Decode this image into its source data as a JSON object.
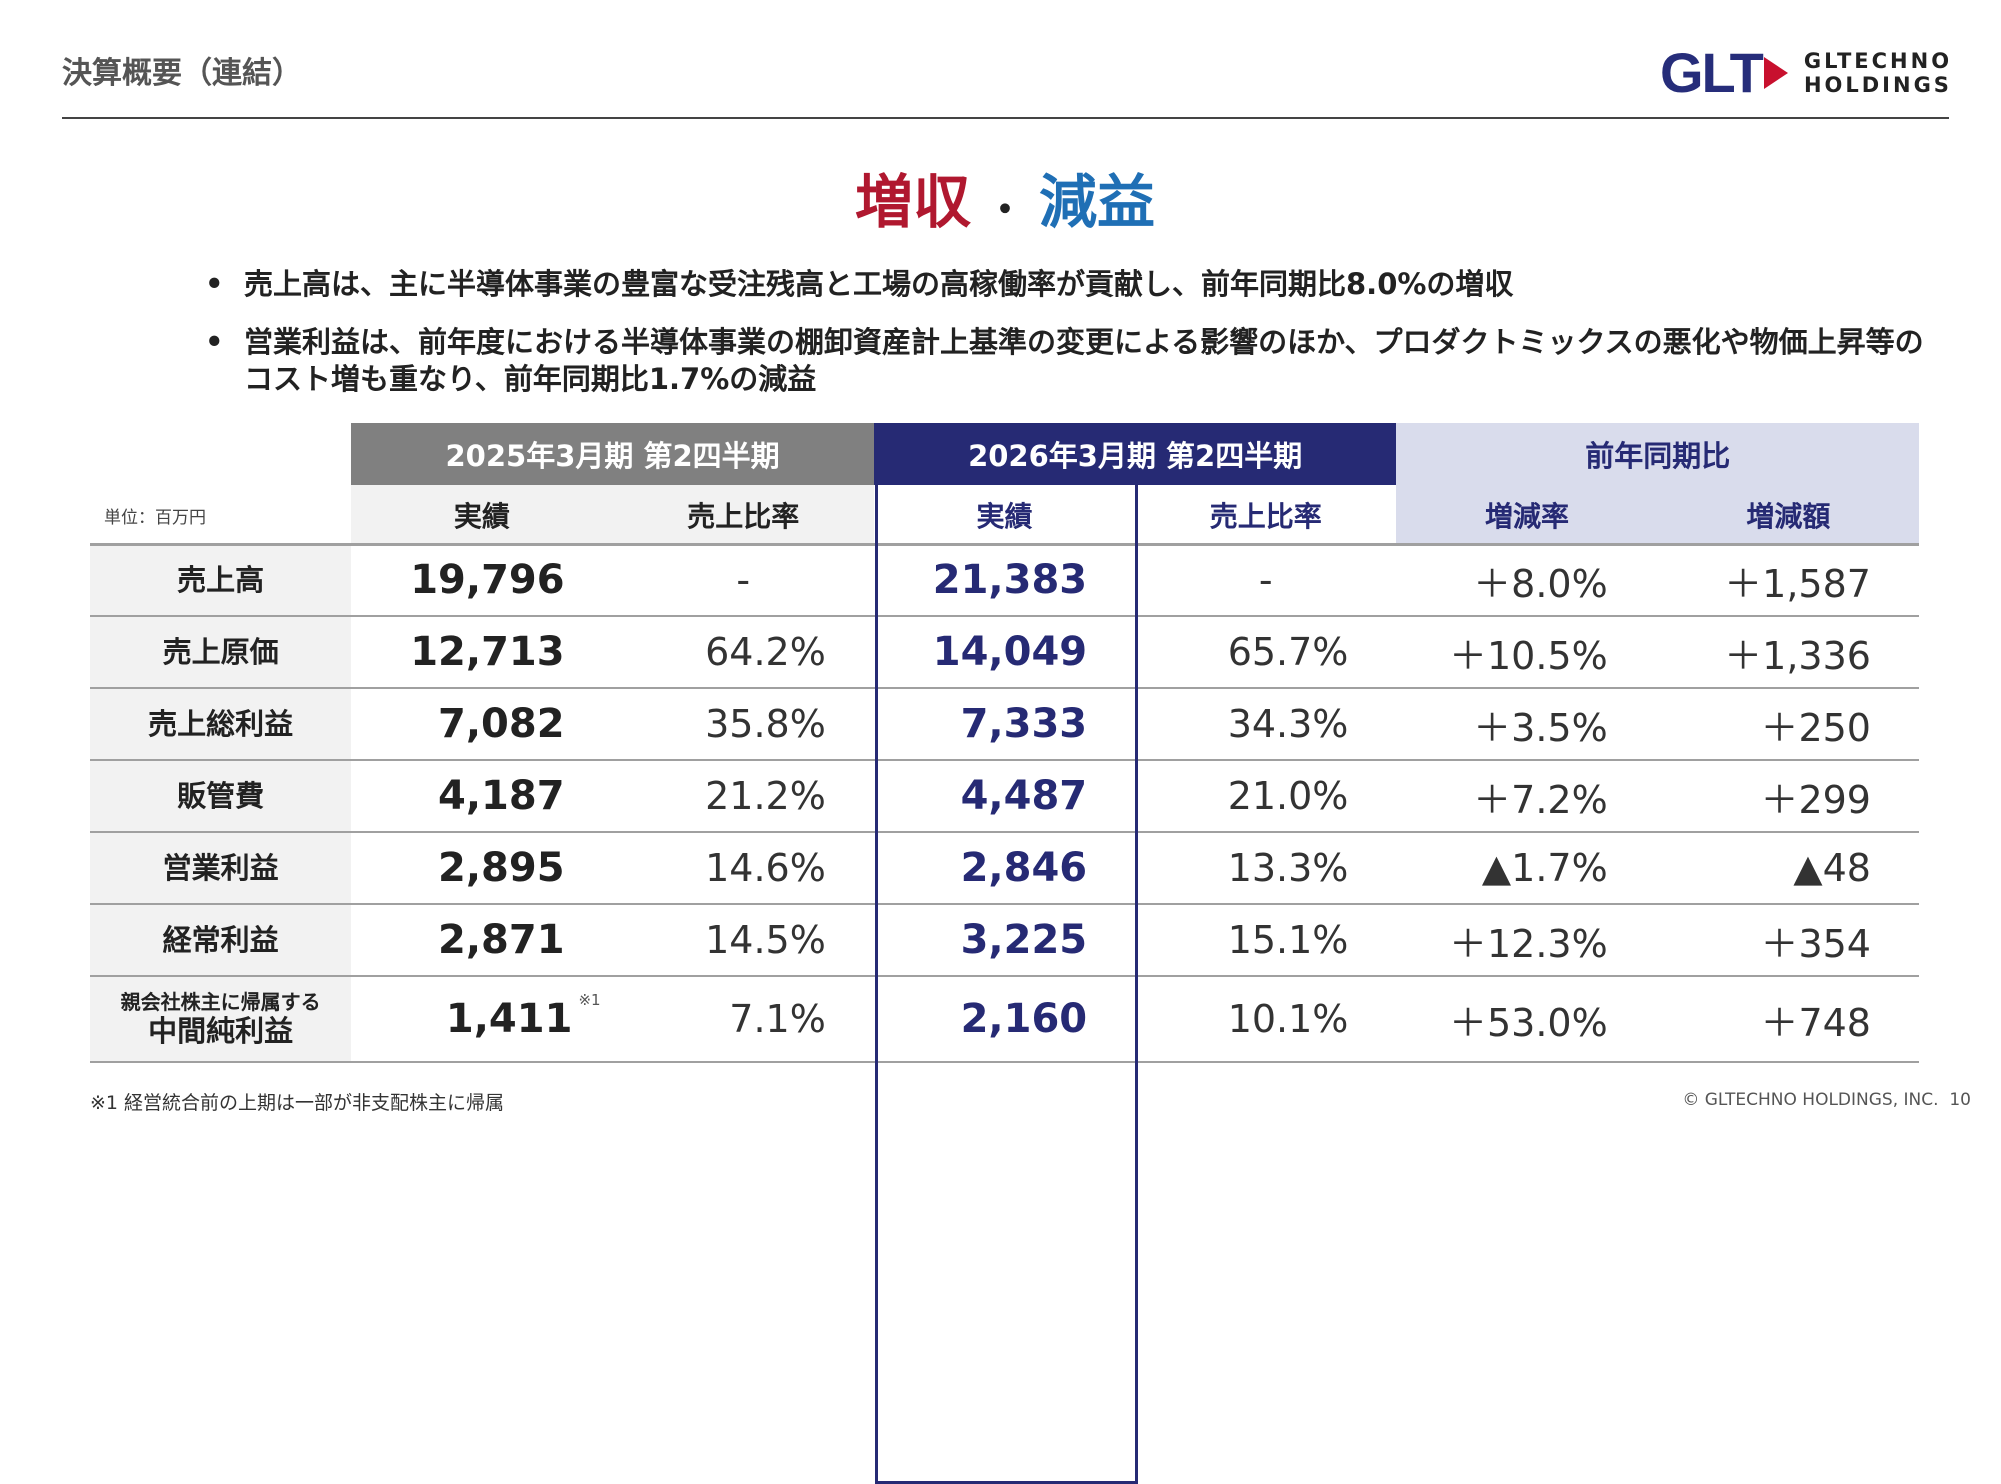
{
  "header": {
    "title": "決算概要（連結）",
    "logo_mark": "GLT",
    "logo_name_line1": "GLTECHNO",
    "logo_name_line2": "HOLDINGS"
  },
  "headline": {
    "up": "増収",
    "dot": "・",
    "down": "減益"
  },
  "bullets": [
    {
      "marker": "•",
      "text": "売上高は、主に半導体事業の豊富な受注残高と工場の高稼働率が貢献し、前年同期比8.0%の増収"
    },
    {
      "marker": "•",
      "text": "営業利益は、前年度における半導体事業の棚卸資産計上基準の変更による影響のほか、プロダクトミックスの悪化や物価上昇等のコスト増も重なり、前年同期比1.7%の減益"
    }
  ],
  "table": {
    "unit": "単位：百万円",
    "groups": [
      "2025年3月期 第2四半期",
      "2026年3月期 第2四半期",
      "前年同期比"
    ],
    "subheaders": [
      "実績",
      "売上比率",
      "実績",
      "売上比率",
      "増減率",
      "増減額"
    ],
    "rows": [
      {
        "label": "売上高",
        "prev": "19,796",
        "prev_ratio": "-",
        "cur": "21,383",
        "cur_ratio": "-",
        "rate": "＋8.0%",
        "diff": "＋1,587"
      },
      {
        "label": "売上原価",
        "prev": "12,713",
        "prev_ratio": "64.2%",
        "cur": "14,049",
        "cur_ratio": "65.7%",
        "rate": "＋10.5%",
        "diff": "＋1,336"
      },
      {
        "label": "売上総利益",
        "prev": "7,082",
        "prev_ratio": "35.8%",
        "cur": "7,333",
        "cur_ratio": "34.3%",
        "rate": "＋3.5%",
        "diff": "＋250"
      },
      {
        "label": "販管費",
        "prev": "4,187",
        "prev_ratio": "21.2%",
        "cur": "4,487",
        "cur_ratio": "21.0%",
        "rate": "＋7.2%",
        "diff": "＋299"
      },
      {
        "label": "営業利益",
        "prev": "2,895",
        "prev_ratio": "14.6%",
        "cur": "2,846",
        "cur_ratio": "13.3%",
        "rate": "▲1.7%",
        "diff": "▲48"
      },
      {
        "label": "経常利益",
        "prev": "2,871",
        "prev_ratio": "14.5%",
        "cur": "3,225",
        "cur_ratio": "15.1%",
        "rate": "＋12.3%",
        "diff": "＋354"
      },
      {
        "label_small": "親会社株主に帰属する",
        "label": "中間純利益",
        "prev": "1,411",
        "prev_note": "※1",
        "prev_ratio": "7.1%",
        "cur": "2,160",
        "cur_ratio": "10.1%",
        "rate": "＋53.0%",
        "diff": "＋748"
      }
    ]
  },
  "footnote": "※1 経営統合前の上期は一部が非支配株主に帰属",
  "copyright": "© GLTECHNO HOLDINGS, INC.",
  "page_number": "10",
  "colors": {
    "gray_header": "#808080",
    "navy": "#262a74",
    "compare_header": "#d9dcec",
    "red": "#b0182f",
    "blue": "#1f6fb5"
  }
}
